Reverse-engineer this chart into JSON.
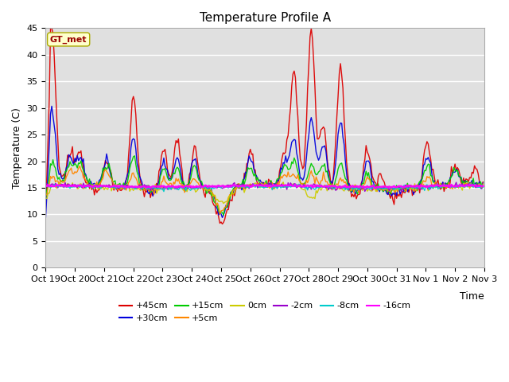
{
  "title": "Temperature Profile A",
  "xlabel": "Time",
  "ylabel": "Temperature (C)",
  "ylim": [
    0,
    45
  ],
  "yticks": [
    0,
    5,
    10,
    15,
    20,
    25,
    30,
    35,
    40,
    45
  ],
  "xtick_labels": [
    "Oct 19",
    "Oct 20",
    "Oct 21",
    "Oct 22",
    "Oct 23",
    "Oct 24",
    "Oct 25",
    "Oct 26",
    "Oct 27",
    "Oct 28",
    "Oct 29",
    "Oct 30",
    "Oct 31",
    "Nov 1",
    "Nov 2",
    "Nov 3"
  ],
  "series_labels": [
    "+45cm",
    "+30cm",
    "+15cm",
    "+5cm",
    "0cm",
    "-2cm",
    "-8cm",
    "-16cm"
  ],
  "series_colors": [
    "#dd0000",
    "#0000dd",
    "#00cc00",
    "#ff8800",
    "#cccc00",
    "#9900cc",
    "#00cccc",
    "#ff00ff"
  ],
  "gt_met_label": "GT_met",
  "background_color": "#e0e0e0",
  "title_fontsize": 11,
  "label_fontsize": 9,
  "tick_fontsize": 8,
  "legend_row1": [
    "+45cm",
    "+30cm",
    "+15cm",
    "+5cm",
    "0cm",
    "-2cm"
  ],
  "legend_row2": [
    "-8cm",
    "-16cm"
  ],
  "legend_colors_row1": [
    "#dd0000",
    "#0000dd",
    "#00cc00",
    "#ff8800",
    "#cccc00",
    "#9900cc"
  ],
  "legend_colors_row2": [
    "#00cccc",
    "#ff00ff"
  ]
}
